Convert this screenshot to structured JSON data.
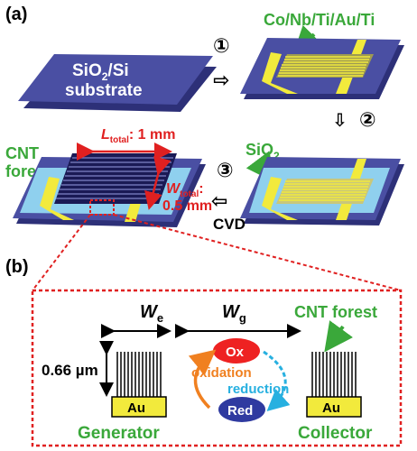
{
  "panel_a": {
    "label": "(a)",
    "substrate": {
      "line1": "SiO",
      "line1_sub": "2",
      "line1_rest": "/Si",
      "line2": "substrate"
    },
    "metal_stack": "Co/Nb/Ti/Au/Ti",
    "oxide": {
      "text": "SiO",
      "sub": "2"
    },
    "cnt": {
      "line1": "CNT",
      "line2": "forest"
    },
    "length": {
      "symbol": "L",
      "sub": "total",
      "value": ": 1 mm"
    },
    "width": {
      "symbol": "W",
      "sub": "total",
      "colon": ":",
      "value": "0.5 mm"
    },
    "process": "CVD",
    "steps": [
      "①",
      "②",
      "③"
    ]
  },
  "panel_b": {
    "label": "(b)",
    "we": {
      "symbol": "W",
      "sub": "e"
    },
    "wg": {
      "symbol": "W",
      "sub": "g"
    },
    "cnt_forest": "CNT forest",
    "height": "0.66 µm",
    "ox": "Ox",
    "red": "Red",
    "oxidation": "oxidation",
    "reduction": "reduction",
    "electrode_left": "Au",
    "electrode_right": "Au",
    "generator": "Generator",
    "collector": "Collector"
  },
  "colors": {
    "substrate": "#4a4fa3",
    "oxide": "#8fd0ee",
    "gold": "#f2ea3c",
    "green_label": "#3aa83a",
    "red_annot": "#e02020",
    "ox_fill": "#ee2222",
    "red_fill": "#2f3aa0",
    "oxidation_arrow": "#f08020",
    "reduction_arrow": "#27b0e0"
  }
}
